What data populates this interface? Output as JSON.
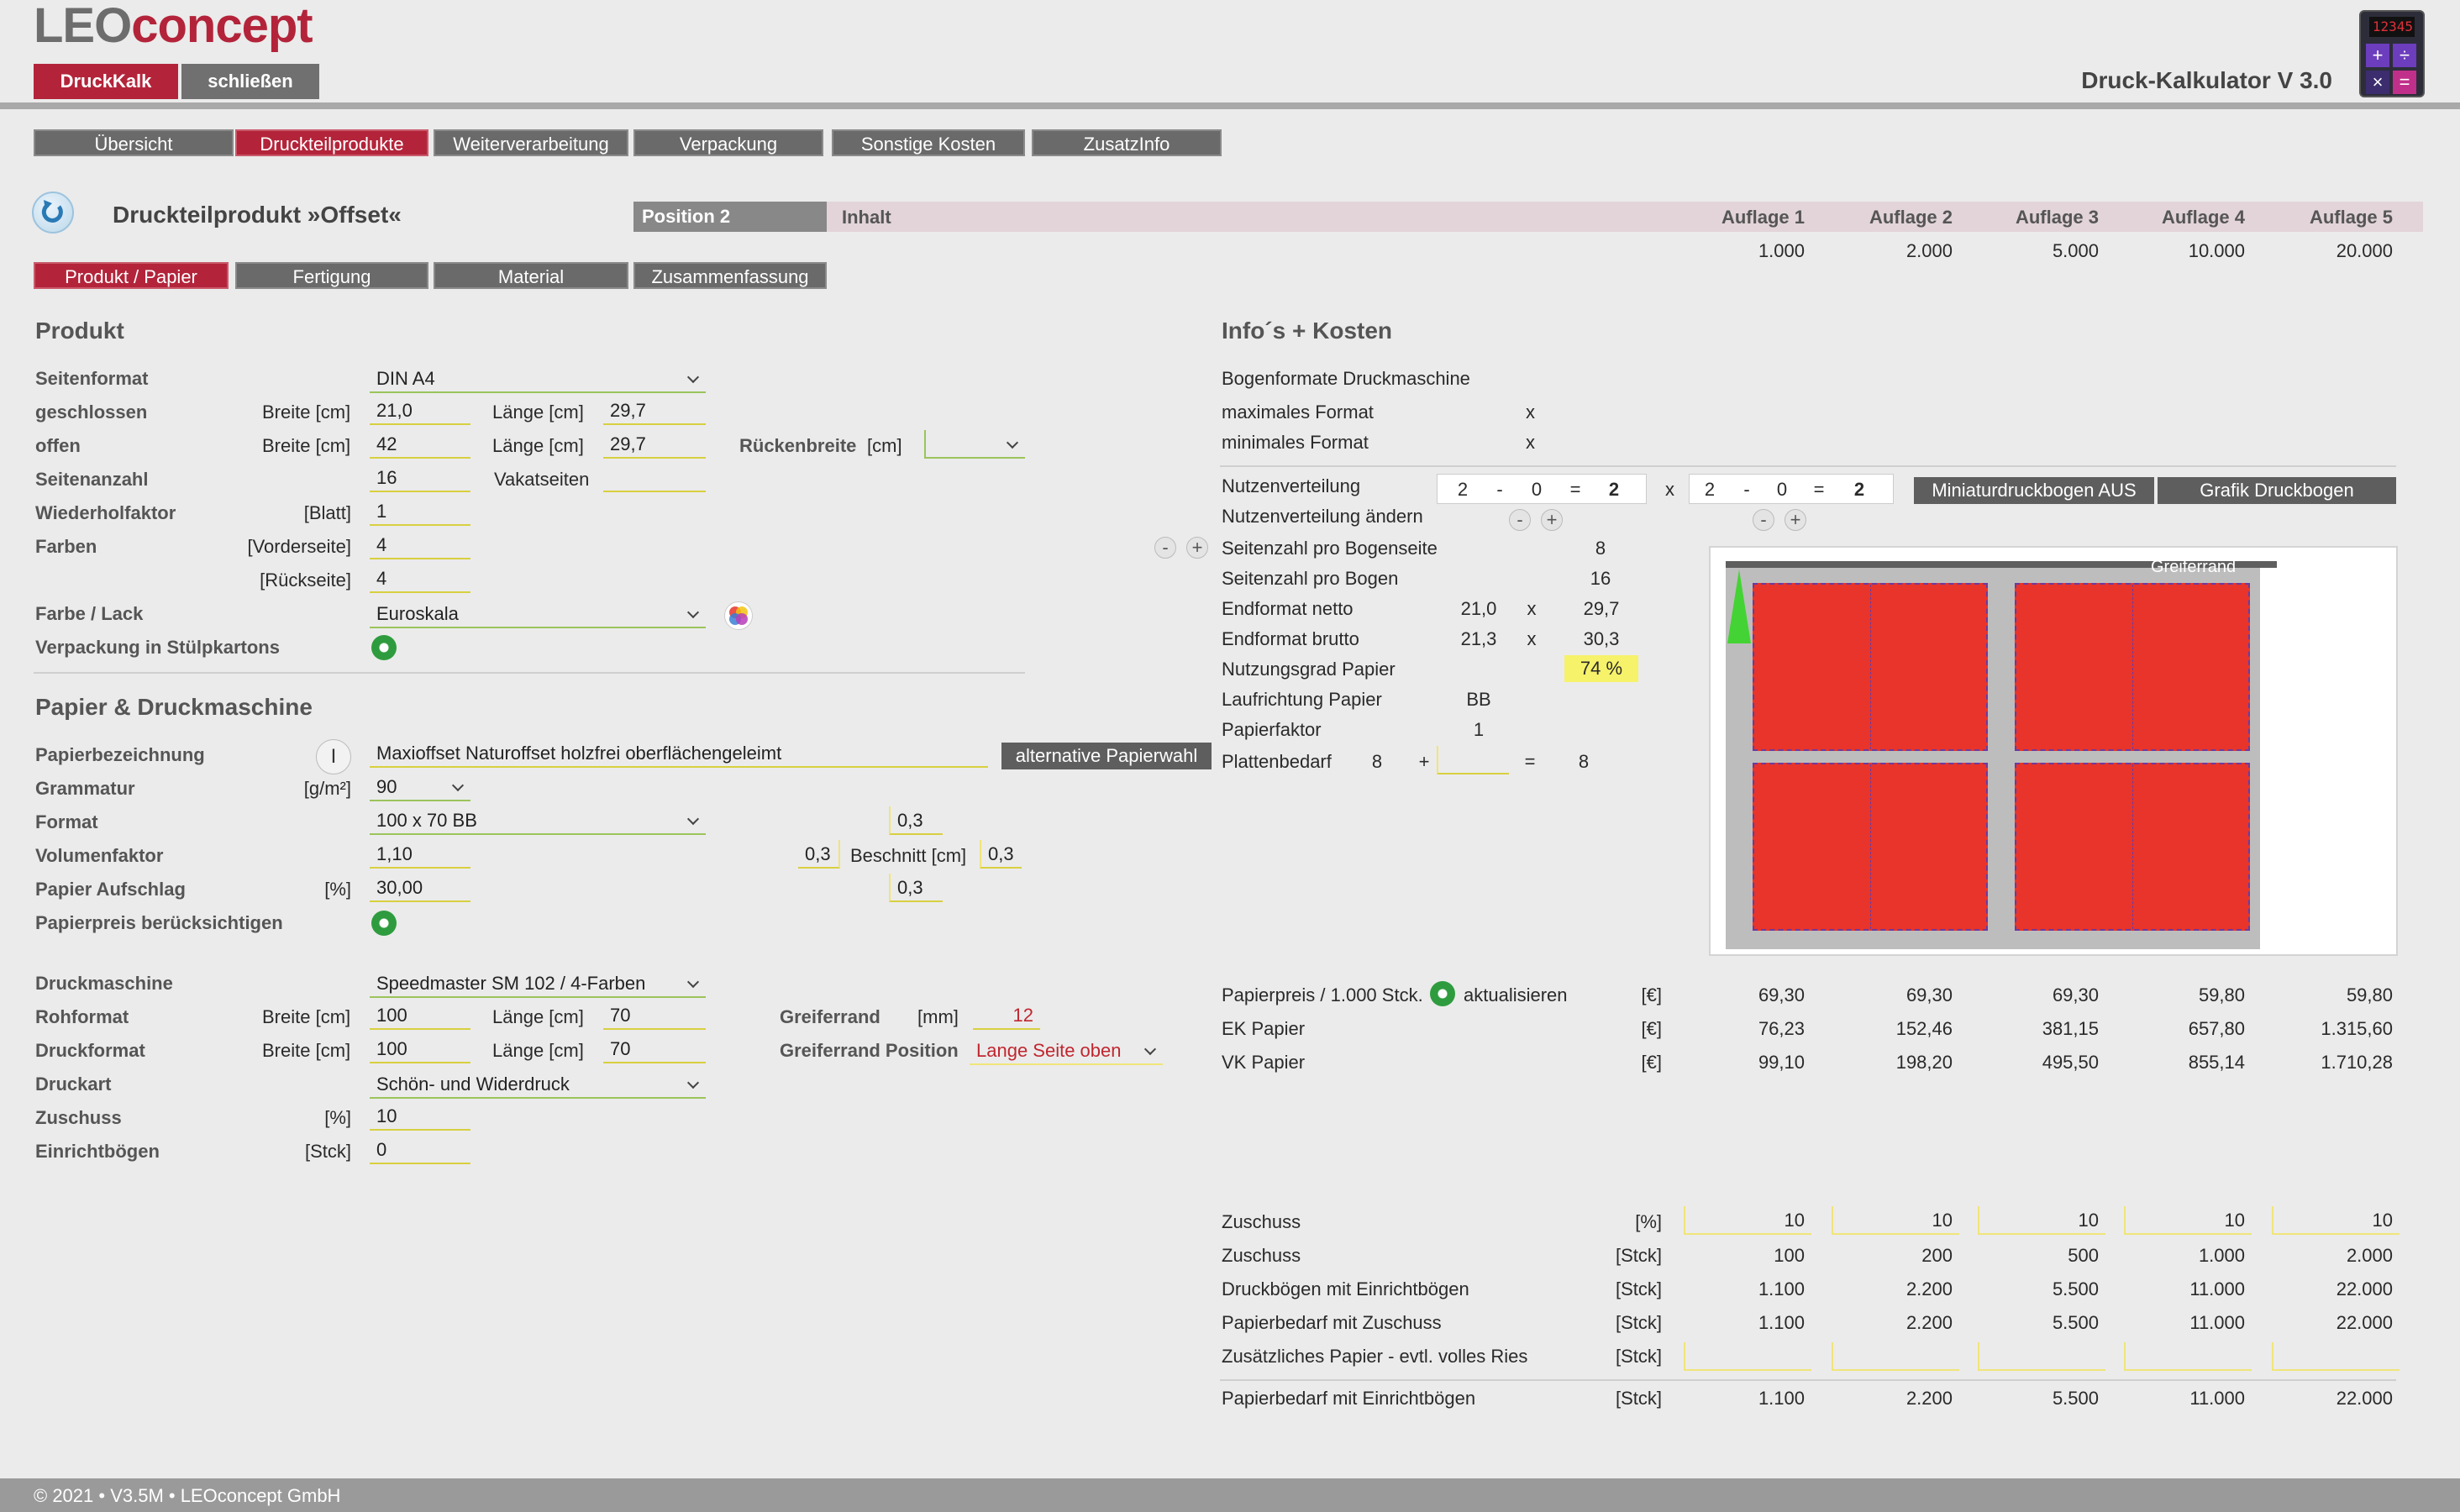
{
  "brand": {
    "logo_leo": "LEO",
    "logo_concept": "concept",
    "app_title": "Druck-Kalkulator V 3.0",
    "calc_display": "12345"
  },
  "top_buttons": {
    "druckkalk": "DruckKalk",
    "close": "schließen"
  },
  "nav_tabs": [
    "Übersicht",
    "Druckteilprodukte",
    "Weiterverarbeitung",
    "Verpackung",
    "Sonstige Kosten",
    "ZusatzInfo"
  ],
  "header": {
    "product_title": "Druckteilprodukt »Offset«",
    "position": "Position 2",
    "content_label": "Inhalt",
    "auflagen": [
      "Auflage 1",
      "Auflage 2",
      "Auflage 3",
      "Auflage 4",
      "Auflage 5"
    ],
    "quantities": [
      "1.000",
      "2.000",
      "5.000",
      "10.000",
      "20.000"
    ]
  },
  "sub_tabs": [
    "Produkt / Papier",
    "Fertigung",
    "Material",
    "Zusammenfassung"
  ],
  "produkt": {
    "heading": "Produkt",
    "seitenformat_label": "Seitenformat",
    "seitenformat": "DIN A4",
    "geschlossen_label": "geschlossen",
    "breite_label": "Breite [cm]",
    "laenge_label": "Länge [cm]",
    "g_breite": "21,0",
    "g_laenge": "29,7",
    "offen_label": "offen",
    "o_breite": "42",
    "o_laenge": "29,7",
    "ruecken_label": "Rückenbreite",
    "ruecken_unit": "[cm]",
    "ruecken_value": "",
    "seitenanzahl_label": "Seitenanzahl",
    "seitenanzahl": "16",
    "vakat_label": "Vakatseiten",
    "vakat_value": "",
    "wiederhol_label": "Wiederholfaktor",
    "wiederhol_unit": "[Blatt]",
    "wiederhol": "1",
    "farben_label": "Farben",
    "vorder_label": "[Vorderseite]",
    "vorder": "4",
    "rueck_label": "[Rückseite]",
    "rueck": "4",
    "farbe_lack_label": "Farbe / Lack",
    "farbe_lack": "Euroskala",
    "verpackung_label": "Verpackung in Stülpkartons"
  },
  "papier": {
    "heading": "Papier & Druckmaschine",
    "bezeichnung_label": "Papierbezeichnung",
    "bezeichnung": "Maxioffset Naturoffset holzfrei oberflächengeleimt",
    "alt_button": "alternative Papierwahl",
    "grammatur_label": "Grammatur",
    "grammatur_unit": "[g/m²]",
    "grammatur": "90",
    "format_label": "Format",
    "format": "100 x 70 BB",
    "volumen_label": "Volumenfaktor",
    "volumen": "1,10",
    "aufschlag_label": "Papier Aufschlag",
    "aufschlag_unit": "[%]",
    "aufschlag": "30,00",
    "preis_label": "Papierpreis berücksichtigen",
    "beschnitt_label": "Beschnitt [cm]",
    "beschnitt_top": "0,3",
    "beschnitt_left": "0,3",
    "beschnitt_right": "0,3",
    "beschnitt_bottom": "0,3",
    "maschine_label": "Druckmaschine",
    "maschine": "Speedmaster SM 102 / 4-Farben",
    "rohformat_label": "Rohformat",
    "roh_breite": "100",
    "roh_laenge": "70",
    "druckformat_label": "Druckformat",
    "druck_breite": "100",
    "druck_laenge": "70",
    "greifer_label": "Greiferrand",
    "greifer_unit": "[mm]",
    "greifer": "12",
    "greifer_pos_label": "Greiferrand Position",
    "greifer_pos": "Lange Seite oben",
    "druckart_label": "Druckart",
    "druckart": "Schön- und Widerdruck",
    "zuschuss_label": "Zuschuss",
    "zuschuss_unit": "[%]",
    "zuschuss": "10",
    "einricht_label": "Einrichtbögen",
    "einricht_unit": "[Stck]",
    "einricht": "0"
  },
  "info": {
    "heading": "Info´s + Kosten",
    "bogen_label": "Bogenformate Druckmaschine",
    "max_label": "maximales Format",
    "min_label": "minimales Format",
    "x": "x",
    "nutzen_label": "Nutzenverteilung",
    "nutzen_a": [
      "2",
      "-",
      "0",
      "=",
      "2"
    ],
    "nutzen_b": [
      "2",
      "-",
      "0",
      "=",
      "2"
    ],
    "nutzen_aendern_label": "Nutzenverteilung ändern",
    "mini_button": "Miniaturdruckbogen AUS",
    "grafik_button": "Grafik Druckbogen",
    "sz_bogenseite_label": "Seitenzahl pro Bogenseite",
    "sz_bogenseite": "8",
    "sz_bogen_label": "Seitenzahl pro Bogen",
    "sz_bogen": "16",
    "netto_label": "Endformat netto",
    "netto_b": "21,0",
    "netto_l": "29,7",
    "brutto_label": "Endformat brutto",
    "brutto_b": "21,3",
    "brutto_l": "30,3",
    "nutzungsgrad_label": "Nutzungsgrad Papier",
    "nutzungsgrad": "74 %",
    "laufrichtung_label": "Laufrichtung Papier",
    "laufrichtung": "BB",
    "faktor_label": "Papierfaktor",
    "faktor": "1",
    "platten_label": "Plattenbedarf",
    "platten_a": "8",
    "plus": "+",
    "eq": "=",
    "platten_sum": "8",
    "greiferrand_sheet": "Greiferrand"
  },
  "costs": {
    "aktualisieren": "aktualisieren",
    "rows": [
      {
        "label": "Papierpreis / 1.000 Stck.",
        "unit": "[€]",
        "values": [
          "69,30",
          "69,30",
          "69,30",
          "59,80",
          "59,80"
        ]
      },
      {
        "label": "EK Papier",
        "unit": "[€]",
        "values": [
          "76,23",
          "152,46",
          "381,15",
          "657,80",
          "1.315,60"
        ]
      },
      {
        "label": "VK Papier",
        "unit": "[€]",
        "values": [
          "99,10",
          "198,20",
          "495,50",
          "855,14",
          "1.710,28"
        ]
      }
    ]
  },
  "bedarf": {
    "rows": [
      {
        "label": "Zuschuss",
        "unit": "[%]",
        "values": [
          "10",
          "10",
          "10",
          "10",
          "10"
        ]
      },
      {
        "label": "Zuschuss",
        "unit": "[Stck]",
        "values": [
          "100",
          "200",
          "500",
          "1.000",
          "2.000"
        ]
      },
      {
        "label": "Druckbögen mit Einrichtbögen",
        "unit": "[Stck]",
        "values": [
          "1.100",
          "2.200",
          "5.500",
          "11.000",
          "22.000"
        ]
      },
      {
        "label": "Papierbedarf mit Zuschuss",
        "unit": "[Stck]",
        "values": [
          "1.100",
          "2.200",
          "5.500",
          "11.000",
          "22.000"
        ]
      },
      {
        "label": "Zusätzliches Papier - evtl. volles Ries",
        "unit": "[Stck]",
        "values": [
          "",
          "",
          "",
          "",
          ""
        ]
      }
    ],
    "total": {
      "label": "Papierbedarf mit Einrichtbögen",
      "unit": "[Stck]",
      "values": [
        "1.100",
        "2.200",
        "5.500",
        "11.000",
        "22.000"
      ]
    }
  },
  "footer": "© 2021 • V3.5M • LEOconcept GmbH",
  "colors": {
    "accent": "#b3243a",
    "tab_gray": "#6a6a6a",
    "header_band": "#e2d4d8",
    "sheet_red": "#e8342a"
  }
}
